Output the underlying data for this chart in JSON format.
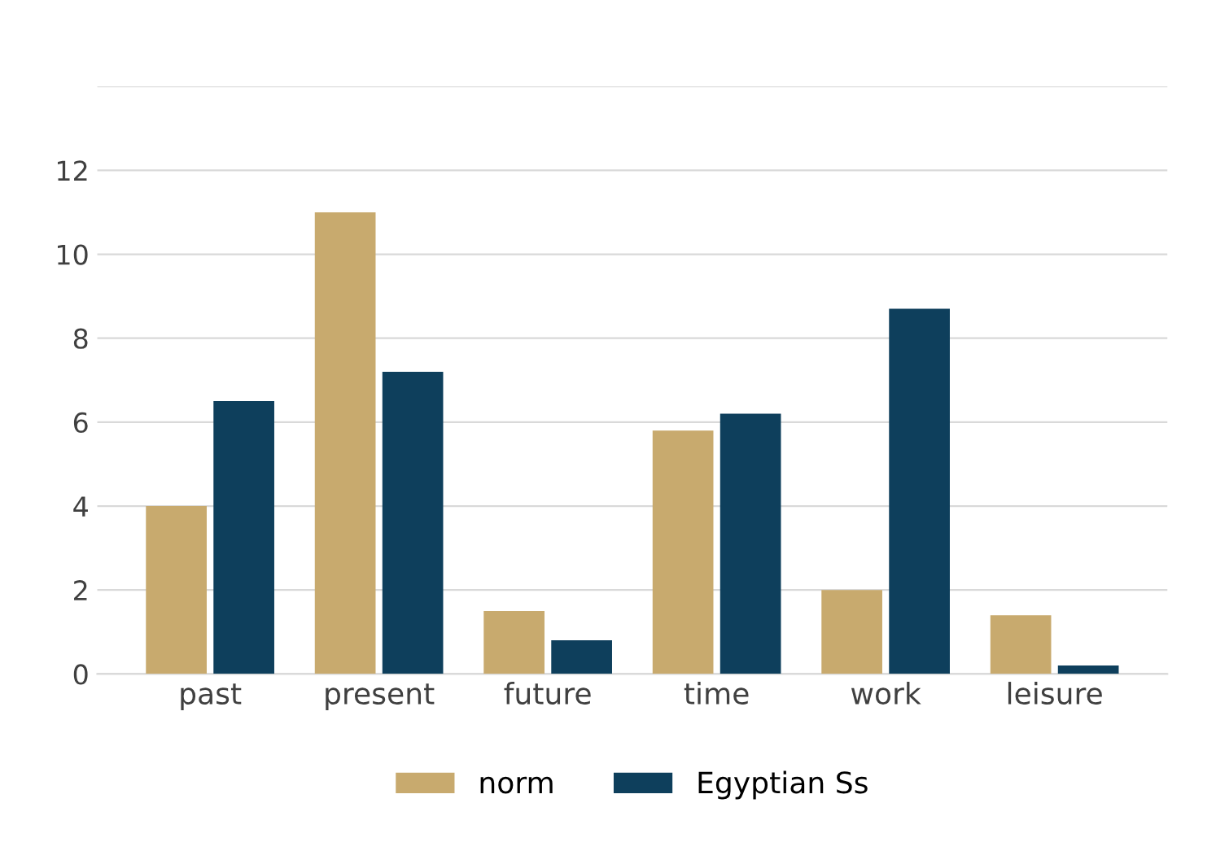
{
  "chart_data": {
    "type": "bar",
    "categories": [
      "past",
      "present",
      "future",
      "time",
      "work",
      "leisure"
    ],
    "series": [
      {
        "name": "norm",
        "color": "#c8aa6e",
        "values": [
          4,
          11,
          1.5,
          5.8,
          2,
          1.4
        ]
      },
      {
        "name": "Egyptian Ss",
        "color": "#0e3f5c",
        "values": [
          6.5,
          7.2,
          0.8,
          6.2,
          8.7,
          0.2
        ]
      }
    ],
    "ylim": [
      0,
      14
    ],
    "yticks": [
      0,
      2,
      4,
      6,
      8,
      10,
      12,
      {
        "value": 14,
        "label": null
      }
    ],
    "grid": "y",
    "legend": "bottom"
  }
}
